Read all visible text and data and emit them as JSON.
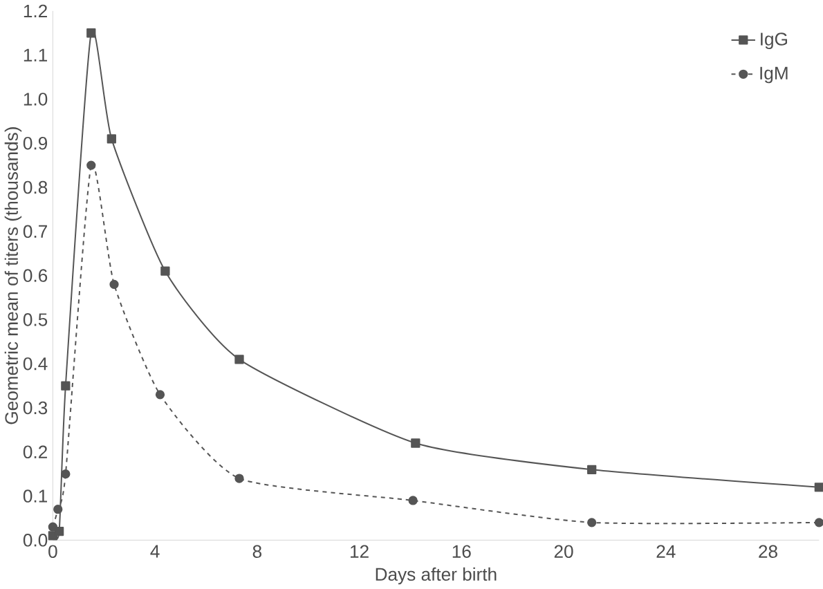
{
  "chart_data": {
    "type": "line",
    "xlabel": "Days after birth",
    "ylabel": "Geometric mean of titers (thousands)",
    "xlim": [
      0,
      30
    ],
    "xticks": [
      0,
      4,
      8,
      12,
      16,
      20,
      24,
      28
    ],
    "ylim": [
      0,
      1.2
    ],
    "yticks": [
      {
        "value": 0,
        "label": "0.0"
      },
      0.1,
      0.2,
      0.3,
      0.4,
      0.5,
      0.6,
      0.7,
      0.8,
      0.9,
      {
        "value": 1,
        "label": "1.0"
      },
      1.1,
      1.2
    ],
    "legend": "top right",
    "grid": false,
    "series": [
      {
        "name": "IgG",
        "color": "#555555",
        "marker": "square",
        "line_style": "solid",
        "x": [
          0,
          0.25,
          0.5,
          1.5,
          2.3,
          4.4,
          7.3,
          14.2,
          21.1,
          30
        ],
        "values": [
          0.01,
          0.02,
          0.35,
          1.15,
          0.91,
          0.61,
          0.41,
          0.22,
          0.16,
          0.12
        ]
      },
      {
        "name": "IgM",
        "color": "#555555",
        "marker": "circle",
        "line_style": "dashed",
        "x": [
          0,
          0.2,
          0.5,
          1.5,
          2.4,
          4.2,
          7.3,
          14.1,
          21.1,
          30
        ],
        "values": [
          0.03,
          0.07,
          0.15,
          0.85,
          0.58,
          0.33,
          0.14,
          0.09,
          0.04,
          0.04
        ]
      }
    ]
  }
}
